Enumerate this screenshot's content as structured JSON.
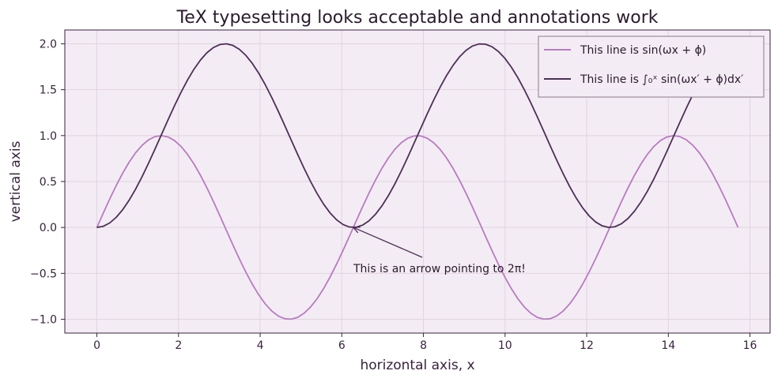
{
  "chart_data": {
    "type": "line",
    "title": "TeX typesetting looks acceptable and annotations work",
    "xlabel": "horizontal axis, x",
    "ylabel": "vertical axis",
    "xlim": [
      -0.785,
      16.493
    ],
    "ylim": [
      -1.15,
      2.15
    ],
    "x_ticks": [
      0,
      2,
      4,
      6,
      8,
      10,
      12,
      14,
      16
    ],
    "y_ticks": [
      -1.0,
      -0.5,
      0.0,
      0.5,
      1.0,
      1.5,
      2.0
    ],
    "x_tick_labels": [
      "0",
      "2",
      "4",
      "6",
      "8",
      "10",
      "12",
      "14",
      "16"
    ],
    "y_tick_labels": [
      "−1.0",
      "−0.5",
      "0.0",
      "0.5",
      "1.0",
      "1.5",
      "2.0"
    ],
    "grid": true,
    "legend_position": "top-right",
    "domain": [
      0,
      15.708
    ],
    "sample_count": 100,
    "series": [
      {
        "name": "This line is sin(ωx + ϕ)",
        "function": "sin(x)",
        "color": "#b77bbf"
      },
      {
        "name": "This line is ∫₀ˣ sin(ωx′ + ϕ)dx′",
        "function": "1 - cos(x)",
        "color": "#4d2f56"
      }
    ],
    "annotations": [
      {
        "text": "This is an arrow pointing to 2π!",
        "xy": [
          6.283,
          0.0
        ],
        "xytext": [
          6.3,
          -0.45
        ]
      }
    ]
  },
  "colors": {
    "plot_background": "#f4ecf4",
    "grid": "#e2d3e1",
    "axis": "#3a2240",
    "text": "#2a1a2e",
    "arrow": "#4d2f56",
    "legend_border": "#8a7a8c"
  }
}
